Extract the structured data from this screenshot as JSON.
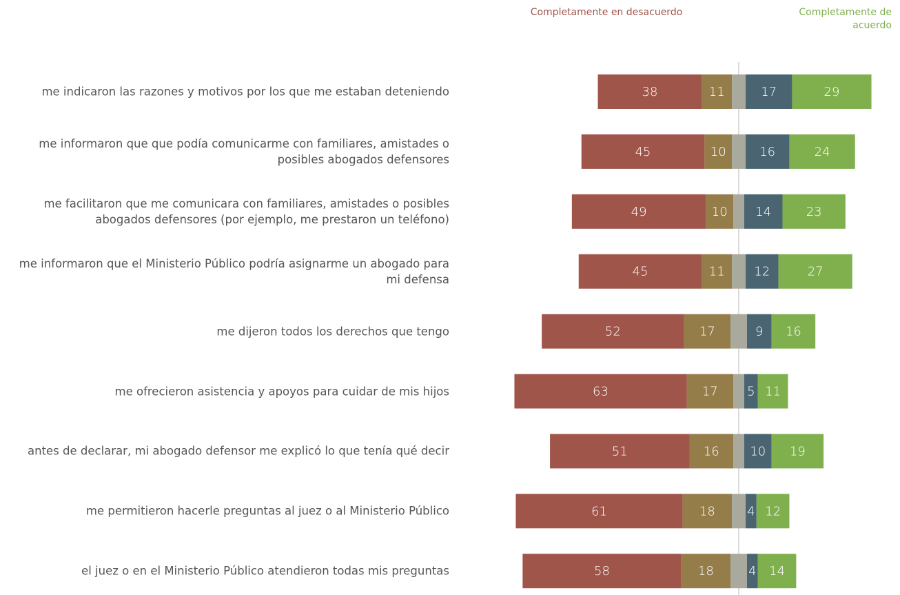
{
  "chart_data": {
    "type": "diverging_stacked_bar",
    "categories": [
      "me indicaron las razones y motivos por los que me estaban deteniendo",
      "me informaron que que podía comunicarme con familiares, amistades o posibles abogados defensores",
      "me facilitaron que me comunicara con familiares, amistades o posibles abogados defensores (por ejemplo, me prestaron un teléfono)",
      "me informaron que el Ministerio Público podría asignarme un abogado para mi defensa",
      "me dijeron todos los derechos que tengo",
      "me ofrecieron asistencia y apoyos para cuidar de mis hijos",
      "antes de declarar, mi abogado defensor me explicó lo que tenía qué decir",
      "me permitieron hacerle preguntas al juez o al Ministerio Público",
      "el juez o en el Ministerio Público atendieron todas mis preguntas"
    ],
    "series": [
      {
        "name": "Completamente en desacuerdo",
        "color": "#a0554b",
        "values": [
          38,
          45,
          49,
          45,
          52,
          63,
          51,
          61,
          58
        ]
      },
      {
        "color": "#957d4a",
        "values": [
          11,
          10,
          10,
          11,
          17,
          17,
          16,
          18,
          18
        ]
      },
      {
        "color": "#aaa99d",
        "show_labels": false,
        "values": [
          5,
          5,
          4,
          5,
          6,
          4,
          4,
          5,
          6
        ]
      },
      {
        "color": "#4a6571",
        "values": [
          17,
          16,
          14,
          12,
          9,
          5,
          10,
          4,
          4
        ]
      },
      {
        "name": "Completamente de acuerdo",
        "color": "#80b04e",
        "values": [
          29,
          24,
          23,
          27,
          16,
          11,
          19,
          12,
          14
        ]
      }
    ],
    "center_series": 2
  }
}
